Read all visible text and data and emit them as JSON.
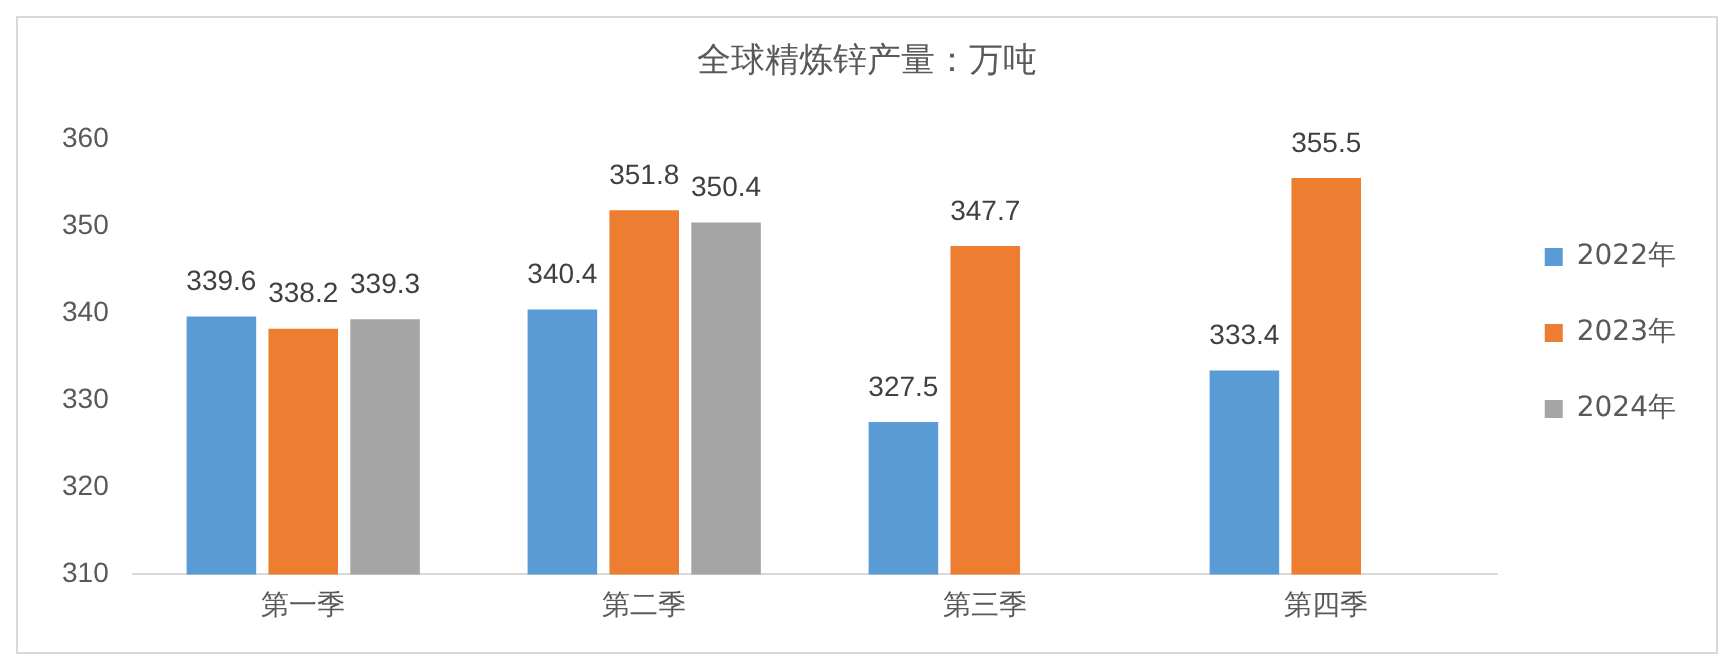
{
  "chart_data": {
    "type": "bar",
    "title": "全球精炼锌产量：万吨",
    "categories": [
      "第一季",
      "第二季",
      "第三季",
      "第四季"
    ],
    "series": [
      {
        "name": "2022年",
        "color": "#5b9bd5",
        "values": [
          339.6,
          340.4,
          327.5,
          333.4
        ]
      },
      {
        "name": "2023年",
        "color": "#ed7d31",
        "values": [
          338.2,
          351.8,
          347.7,
          355.5
        ]
      },
      {
        "name": "2024年",
        "color": "#a5a5a5",
        "values": [
          339.3,
          350.4,
          null,
          null
        ]
      }
    ],
    "ylim": [
      310,
      360
    ],
    "yticks": [
      310,
      320,
      330,
      340,
      350,
      360
    ],
    "grid": false,
    "legend": "right",
    "data_labels": true
  }
}
